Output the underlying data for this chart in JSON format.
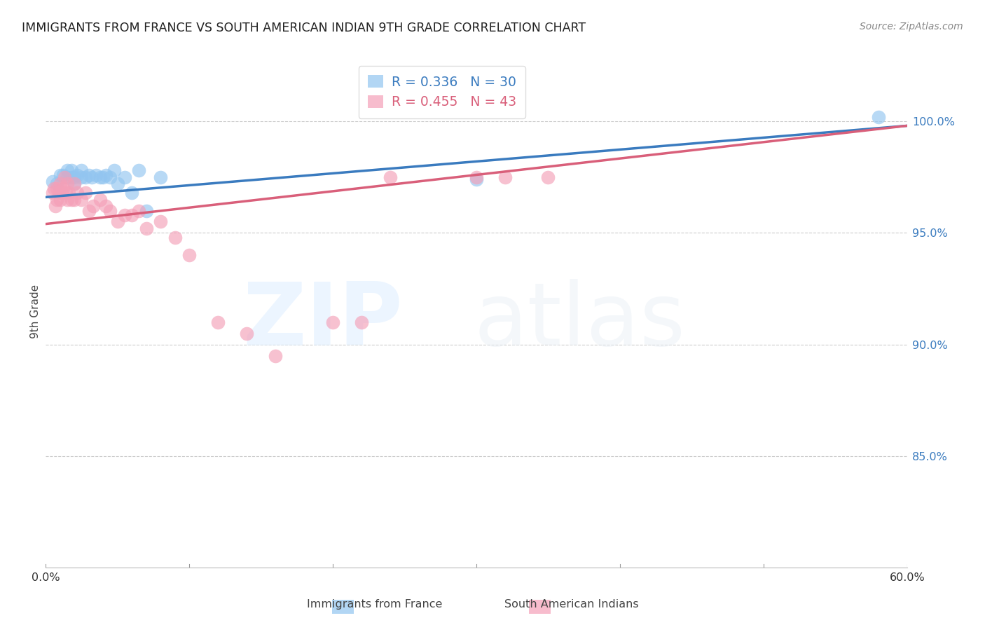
{
  "title": "IMMIGRANTS FROM FRANCE VS SOUTH AMERICAN INDIAN 9TH GRADE CORRELATION CHART",
  "source": "Source: ZipAtlas.com",
  "ylabel": "9th Grade",
  "legend_r_blue": "R = 0.336",
  "legend_n_blue": "N = 30",
  "legend_r_pink": "R = 0.455",
  "legend_n_pink": "N = 43",
  "color_blue": "#92c5f0",
  "color_pink": "#f4a0b8",
  "line_color_blue": "#3a7bbf",
  "line_color_pink": "#d95f7a",
  "watermark_zip": "ZIP",
  "watermark_atlas": "atlas",
  "xlim": [
    0.0,
    0.6
  ],
  "ylim": [
    0.8,
    1.03
  ],
  "ytick_values": [
    0.85,
    0.9,
    0.95,
    1.0
  ],
  "ytick_labels": [
    "85.0%",
    "90.0%",
    "95.0%",
    "100.0%"
  ],
  "xtick_values": [
    0.0,
    0.1,
    0.2,
    0.3,
    0.4,
    0.5,
    0.6
  ],
  "xtick_labels": [
    "0.0%",
    "",
    "",
    "",
    "",
    "",
    "60.0%"
  ],
  "background_color": "#ffffff",
  "blue_points_x": [
    0.005,
    0.008,
    0.01,
    0.012,
    0.015,
    0.015,
    0.018,
    0.018,
    0.02,
    0.02,
    0.022,
    0.025,
    0.025,
    0.028,
    0.03,
    0.032,
    0.035,
    0.038,
    0.04,
    0.042,
    0.045,
    0.048,
    0.05,
    0.055,
    0.06,
    0.065,
    0.07,
    0.08,
    0.3,
    0.58
  ],
  "blue_points_y": [
    0.973,
    0.972,
    0.976,
    0.976,
    0.975,
    0.978,
    0.975,
    0.978,
    0.972,
    0.975,
    0.976,
    0.978,
    0.975,
    0.975,
    0.976,
    0.975,
    0.976,
    0.975,
    0.975,
    0.976,
    0.975,
    0.978,
    0.972,
    0.975,
    0.968,
    0.978,
    0.96,
    0.975,
    0.974,
    1.002
  ],
  "pink_points_x": [
    0.005,
    0.006,
    0.007,
    0.008,
    0.008,
    0.009,
    0.01,
    0.01,
    0.011,
    0.012,
    0.013,
    0.014,
    0.015,
    0.015,
    0.016,
    0.018,
    0.02,
    0.02,
    0.022,
    0.025,
    0.028,
    0.03,
    0.033,
    0.038,
    0.042,
    0.045,
    0.05,
    0.055,
    0.06,
    0.065,
    0.07,
    0.08,
    0.09,
    0.1,
    0.12,
    0.14,
    0.16,
    0.2,
    0.22,
    0.24,
    0.3,
    0.32,
    0.35
  ],
  "pink_points_y": [
    0.968,
    0.97,
    0.962,
    0.965,
    0.97,
    0.968,
    0.972,
    0.965,
    0.968,
    0.97,
    0.975,
    0.968,
    0.965,
    0.972,
    0.968,
    0.965,
    0.972,
    0.965,
    0.968,
    0.965,
    0.968,
    0.96,
    0.962,
    0.965,
    0.962,
    0.96,
    0.955,
    0.958,
    0.958,
    0.96,
    0.952,
    0.955,
    0.948,
    0.94,
    0.91,
    0.905,
    0.895,
    0.91,
    0.91,
    0.975,
    0.975,
    0.975,
    0.975
  ]
}
